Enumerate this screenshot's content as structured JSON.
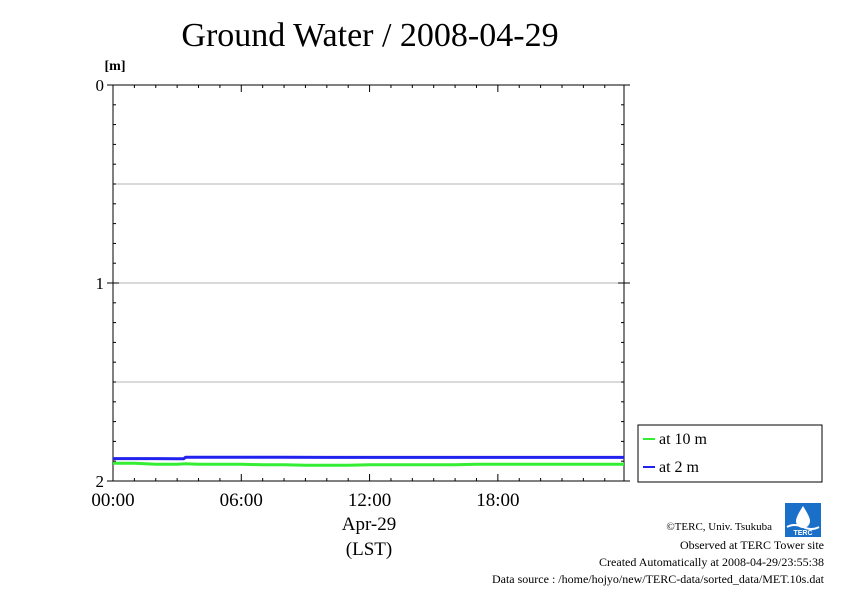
{
  "chart_data": {
    "type": "line",
    "title": "Ground Water / 2008-04-29",
    "ylabel": "[m]",
    "xlabel": "Apr-29",
    "xlabel2": "(LST)",
    "y_inverted": true,
    "ylim": [
      0,
      2
    ],
    "xlim": [
      0,
      23.9
    ],
    "x_unit": "hour",
    "yticks": [
      {
        "value": 0,
        "label": "0"
      },
      {
        "value": 1,
        "label": "1"
      },
      {
        "value": 2,
        "label": "2"
      }
    ],
    "y_gridlines": [
      0.5,
      1,
      1.5
    ],
    "xticks": [
      {
        "value": 0,
        "label": "00:00"
      },
      {
        "value": 6,
        "label": "06:00"
      },
      {
        "value": 12,
        "label": "12:00"
      },
      {
        "value": 18,
        "label": "18:00"
      }
    ],
    "grid": true,
    "legend_position": "right",
    "series": [
      {
        "name": "at 10 m",
        "color": "#33ee33",
        "points": [
          [
            0,
            1.91
          ],
          [
            1,
            1.91
          ],
          [
            2,
            1.915
          ],
          [
            3,
            1.915
          ],
          [
            3.4,
            1.913
          ],
          [
            4,
            1.915
          ],
          [
            5,
            1.915
          ],
          [
            6,
            1.915
          ],
          [
            7,
            1.918
          ],
          [
            8,
            1.918
          ],
          [
            9,
            1.92
          ],
          [
            10,
            1.92
          ],
          [
            11,
            1.92
          ],
          [
            12,
            1.918
          ],
          [
            13,
            1.918
          ],
          [
            14,
            1.918
          ],
          [
            15,
            1.918
          ],
          [
            16,
            1.918
          ],
          [
            17,
            1.915
          ],
          [
            18,
            1.915
          ],
          [
            19,
            1.915
          ],
          [
            20,
            1.915
          ],
          [
            21,
            1.915
          ],
          [
            22,
            1.915
          ],
          [
            23,
            1.915
          ],
          [
            23.9,
            1.915
          ]
        ]
      },
      {
        "name": "at 2 m",
        "color": "#2222ee",
        "points": [
          [
            0,
            1.887
          ],
          [
            1,
            1.887
          ],
          [
            2,
            1.887
          ],
          [
            3,
            1.888
          ],
          [
            3.3,
            1.888
          ],
          [
            3.4,
            1.88
          ],
          [
            4,
            1.88
          ],
          [
            6,
            1.88
          ],
          [
            8,
            1.88
          ],
          [
            10,
            1.881
          ],
          [
            12,
            1.881
          ],
          [
            14,
            1.881
          ],
          [
            16,
            1.881
          ],
          [
            18,
            1.881
          ],
          [
            20,
            1.881
          ],
          [
            22,
            1.881
          ],
          [
            23.9,
            1.881
          ]
        ]
      }
    ]
  },
  "footer": {
    "copyright": "©TERC, Univ. Tsukuba",
    "observed": "Observed at TERC Tower site",
    "created": "Created Automatically at 2008-04-29/23:55:38",
    "source": "Data source : /home/hojyo/new/TERC-data/sorted_data/MET.10s.dat"
  },
  "logo_text": "TERC"
}
